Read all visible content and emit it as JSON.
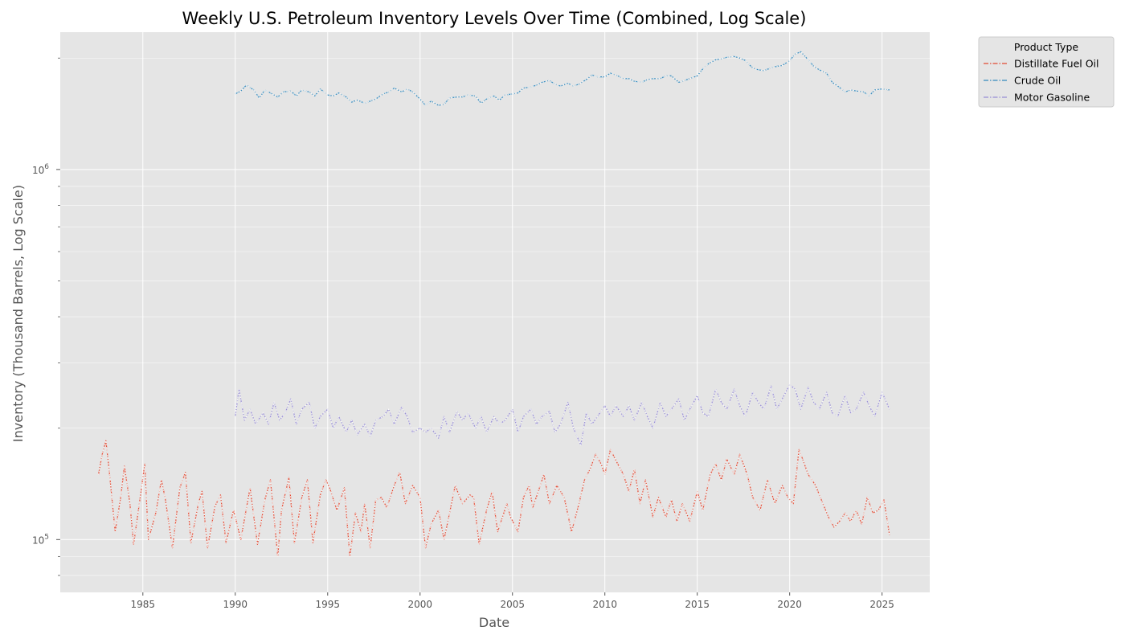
{
  "colors": {
    "panel": "#e5e5e5",
    "grid": "#ffffff",
    "tick": "#555555",
    "legend_bg": "#e5e5e5",
    "legend_border": "#cccccc"
  },
  "chart_data": {
    "type": "line",
    "title": "Weekly U.S. Petroleum Inventory Levels Over Time (Combined, Log Scale)",
    "xlabel": "Date",
    "ylabel": "Inventory (Thousand Barrels, Log Scale)",
    "y_scale": "log",
    "grid": true,
    "xlim": [
      1980.53,
      2027.58
    ],
    "ylim": [
      72000,
      2350000
    ],
    "x_ticks": [
      1985,
      1990,
      1995,
      2000,
      2005,
      2010,
      2015,
      2020,
      2025
    ],
    "x_tick_labels": [
      "1985",
      "1990",
      "1995",
      "2000",
      "2005",
      "2010",
      "2015",
      "2020",
      "2025"
    ],
    "y_major_ticks": [
      100000,
      1000000
    ],
    "y_major_tick_labels": [
      {
        "base": "10",
        "exp": "5"
      },
      {
        "base": "10",
        "exp": "6"
      }
    ],
    "y_minor_ticks": [
      80000,
      90000,
      200000,
      300000,
      400000,
      500000,
      600000,
      700000,
      800000,
      900000,
      2000000
    ],
    "legend": {
      "title": "Product Type",
      "placement": "outside upper right",
      "entries": [
        "Distillate Fuel Oil",
        "Crude Oil",
        "Motor Gasoline"
      ]
    },
    "series": [
      {
        "name": "Distillate Fuel Oil",
        "color": "#e24a33",
        "x": [
          1982.6,
          1982.8,
          1983.0,
          1983.2,
          1983.5,
          1983.8,
          1984.0,
          1984.3,
          1984.5,
          1984.9,
          1985.1,
          1985.3,
          1985.7,
          1986.0,
          1986.2,
          1986.6,
          1987.0,
          1987.3,
          1987.6,
          1988.0,
          1988.2,
          1988.5,
          1988.9,
          1989.2,
          1989.5,
          1989.9,
          1990.0,
          1990.3,
          1990.8,
          1991.2,
          1991.6,
          1991.9,
          1992.3,
          1992.5,
          1992.9,
          1993.2,
          1993.6,
          1993.9,
          1994.2,
          1994.6,
          1994.9,
          1995.1,
          1995.5,
          1995.9,
          1996.2,
          1996.5,
          1996.8,
          1997.0,
          1997.3,
          1997.6,
          1997.9,
          1998.2,
          1998.6,
          1998.9,
          1999.2,
          1999.6,
          2000.0,
          2000.3,
          2000.6,
          2001.0,
          2001.3,
          2001.6,
          2001.9,
          2002.3,
          2002.7,
          2002.9,
          2003.2,
          2003.6,
          2003.9,
          2004.2,
          2004.7,
          2004.9,
          2005.3,
          2005.6,
          2005.9,
          2006.1,
          2006.4,
          2006.7,
          2007.0,
          2007.4,
          2007.8,
          2008.2,
          2008.6,
          2008.9,
          2009.2,
          2009.5,
          2009.8,
          2010.0,
          2010.3,
          2010.7,
          2011.0,
          2011.3,
          2011.6,
          2011.9,
          2012.2,
          2012.6,
          2012.9,
          2013.3,
          2013.6,
          2013.9,
          2014.2,
          2014.6,
          2015.0,
          2015.3,
          2015.7,
          2016.0,
          2016.3,
          2016.6,
          2017.0,
          2017.3,
          2017.7,
          2018.0,
          2018.4,
          2018.8,
          2019.2,
          2019.6,
          2019.9,
          2020.2,
          2020.5,
          2020.7,
          2021.0,
          2021.4,
          2021.8,
          2022.1,
          2022.4,
          2022.7,
          2023.0,
          2023.3,
          2023.6,
          2023.9,
          2024.2,
          2024.5,
          2024.8,
          2025.1,
          2025.4
        ],
        "y": [
          150000,
          170000,
          185000,
          150000,
          105000,
          130000,
          158000,
          125000,
          97000,
          135000,
          160000,
          100000,
          118000,
          145000,
          130000,
          95000,
          138000,
          152000,
          98000,
          125000,
          135000,
          95000,
          123000,
          132000,
          98000,
          120000,
          115000,
          100000,
          138000,
          97000,
          128000,
          145000,
          90000,
          120000,
          147000,
          98000,
          130000,
          145000,
          98000,
          132000,
          145000,
          138000,
          120000,
          138000,
          90000,
          118000,
          105000,
          125000,
          95000,
          128000,
          130000,
          122000,
          140000,
          152000,
          125000,
          140000,
          130000,
          95000,
          110000,
          120000,
          100000,
          118000,
          140000,
          125000,
          132000,
          130000,
          97000,
          120000,
          135000,
          105000,
          125000,
          115000,
          105000,
          130000,
          140000,
          122000,
          135000,
          150000,
          125000,
          140000,
          130000,
          105000,
          125000,
          145000,
          155000,
          170000,
          160000,
          150000,
          175000,
          160000,
          150000,
          135000,
          155000,
          125000,
          145000,
          115000,
          130000,
          115000,
          128000,
          112000,
          125000,
          112000,
          135000,
          120000,
          150000,
          160000,
          145000,
          165000,
          150000,
          170000,
          150000,
          130000,
          120000,
          145000,
          125000,
          140000,
          130000,
          125000,
          175000,
          165000,
          150000,
          140000,
          125000,
          115000,
          108000,
          112000,
          118000,
          112000,
          120000,
          110000,
          130000,
          118000,
          120000,
          128000,
          103000
        ]
      },
      {
        "name": "Crude Oil",
        "color": "#348abd",
        "x": [
          1990.0,
          1990.3,
          1990.6,
          1991.0,
          1991.3,
          1991.6,
          1992.0,
          1992.3,
          1992.6,
          1993.0,
          1993.3,
          1993.6,
          1994.0,
          1994.3,
          1994.6,
          1995.0,
          1995.3,
          1995.6,
          1996.0,
          1996.3,
          1996.6,
          1997.0,
          1997.3,
          1997.6,
          1998.0,
          1998.3,
          1998.6,
          1999.0,
          1999.3,
          1999.6,
          2000.0,
          2000.3,
          2000.6,
          2001.0,
          2001.3,
          2001.6,
          2002.0,
          2002.3,
          2002.6,
          2003.0,
          2003.3,
          2003.6,
          2004.0,
          2004.3,
          2004.6,
          2005.0,
          2005.3,
          2005.6,
          2006.0,
          2006.3,
          2006.6,
          2007.0,
          2007.3,
          2007.6,
          2008.0,
          2008.3,
          2008.6,
          2009.0,
          2009.3,
          2009.6,
          2010.0,
          2010.3,
          2010.6,
          2011.0,
          2011.3,
          2011.6,
          2012.0,
          2012.3,
          2012.6,
          2013.0,
          2013.3,
          2013.6,
          2014.0,
          2014.3,
          2014.6,
          2015.0,
          2015.3,
          2015.6,
          2016.0,
          2016.3,
          2016.6,
          2017.0,
          2017.3,
          2017.6,
          2018.0,
          2018.3,
          2018.6,
          2019.0,
          2019.3,
          2019.6,
          2020.0,
          2020.3,
          2020.6,
          2021.0,
          2021.3,
          2021.6,
          2022.0,
          2022.3,
          2022.6,
          2023.0,
          2023.3,
          2023.6,
          2024.0,
          2024.3,
          2024.6,
          2025.0,
          2025.4
        ],
        "y": [
          1600000,
          1630000,
          1690000,
          1640000,
          1560000,
          1640000,
          1600000,
          1570000,
          1620000,
          1630000,
          1580000,
          1640000,
          1620000,
          1580000,
          1650000,
          1590000,
          1580000,
          1610000,
          1570000,
          1520000,
          1540000,
          1510000,
          1530000,
          1550000,
          1600000,
          1620000,
          1660000,
          1620000,
          1650000,
          1620000,
          1550000,
          1490000,
          1530000,
          1490000,
          1500000,
          1560000,
          1570000,
          1570000,
          1590000,
          1580000,
          1510000,
          1550000,
          1580000,
          1540000,
          1590000,
          1600000,
          1610000,
          1660000,
          1670000,
          1690000,
          1720000,
          1740000,
          1700000,
          1680000,
          1710000,
          1680000,
          1700000,
          1750000,
          1800000,
          1780000,
          1780000,
          1820000,
          1800000,
          1760000,
          1760000,
          1730000,
          1720000,
          1750000,
          1760000,
          1760000,
          1790000,
          1790000,
          1720000,
          1740000,
          1760000,
          1790000,
          1870000,
          1930000,
          1980000,
          1990000,
          2010000,
          2020000,
          2000000,
          1970000,
          1880000,
          1860000,
          1850000,
          1880000,
          1900000,
          1910000,
          1970000,
          2050000,
          2080000,
          1980000,
          1900000,
          1860000,
          1820000,
          1720000,
          1680000,
          1620000,
          1640000,
          1630000,
          1620000,
          1580000,
          1640000,
          1650000,
          1640000
        ]
      },
      {
        "name": "Motor Gasoline",
        "color": "#988ed5",
        "x": [
          1990.0,
          1990.2,
          1990.5,
          1990.8,
          1991.1,
          1991.5,
          1991.8,
          1992.1,
          1992.4,
          1992.7,
          1993.0,
          1993.3,
          1993.6,
          1994.0,
          1994.3,
          1994.6,
          1995.0,
          1995.3,
          1995.6,
          1996.0,
          1996.3,
          1996.6,
          1997.0,
          1997.3,
          1997.6,
          1998.0,
          1998.3,
          1998.6,
          1999.0,
          1999.3,
          1999.6,
          2000.0,
          2000.3,
          2000.6,
          2001.0,
          2001.3,
          2001.6,
          2002.0,
          2002.3,
          2002.6,
          2003.0,
          2003.3,
          2003.6,
          2004.0,
          2004.3,
          2004.6,
          2005.0,
          2005.3,
          2005.6,
          2006.0,
          2006.3,
          2006.6,
          2007.0,
          2007.3,
          2007.6,
          2008.0,
          2008.3,
          2008.7,
          2009.0,
          2009.3,
          2009.6,
          2010.0,
          2010.3,
          2010.6,
          2011.0,
          2011.3,
          2011.6,
          2012.0,
          2012.3,
          2012.6,
          2013.0,
          2013.3,
          2013.6,
          2014.0,
          2014.3,
          2014.6,
          2015.0,
          2015.3,
          2015.6,
          2016.0,
          2016.3,
          2016.6,
          2017.0,
          2017.3,
          2017.6,
          2018.0,
          2018.3,
          2018.6,
          2019.0,
          2019.3,
          2019.6,
          2020.0,
          2020.3,
          2020.6,
          2021.0,
          2021.3,
          2021.6,
          2022.0,
          2022.3,
          2022.6,
          2023.0,
          2023.3,
          2023.6,
          2024.0,
          2024.3,
          2024.6,
          2025.0,
          2025.4
        ],
        "y": [
          215000,
          255000,
          210000,
          225000,
          205000,
          220000,
          205000,
          235000,
          210000,
          220000,
          240000,
          205000,
          225000,
          235000,
          200000,
          215000,
          225000,
          200000,
          215000,
          195000,
          210000,
          192000,
          205000,
          190000,
          210000,
          215000,
          225000,
          205000,
          228000,
          215000,
          195000,
          200000,
          195000,
          200000,
          188000,
          215000,
          195000,
          222000,
          210000,
          220000,
          200000,
          215000,
          195000,
          215000,
          205000,
          210000,
          225000,
          195000,
          215000,
          225000,
          205000,
          215000,
          222000,
          195000,
          205000,
          235000,
          200000,
          180000,
          220000,
          205000,
          215000,
          230000,
          215000,
          230000,
          215000,
          230000,
          210000,
          235000,
          215000,
          200000,
          235000,
          215000,
          225000,
          240000,
          210000,
          225000,
          245000,
          220000,
          215000,
          255000,
          235000,
          225000,
          255000,
          230000,
          215000,
          250000,
          235000,
          225000,
          260000,
          225000,
          240000,
          262000,
          255000,
          225000,
          258000,
          235000,
          225000,
          250000,
          220000,
          215000,
          245000,
          220000,
          225000,
          250000,
          230000,
          215000,
          250000,
          225000
        ]
      }
    ]
  }
}
